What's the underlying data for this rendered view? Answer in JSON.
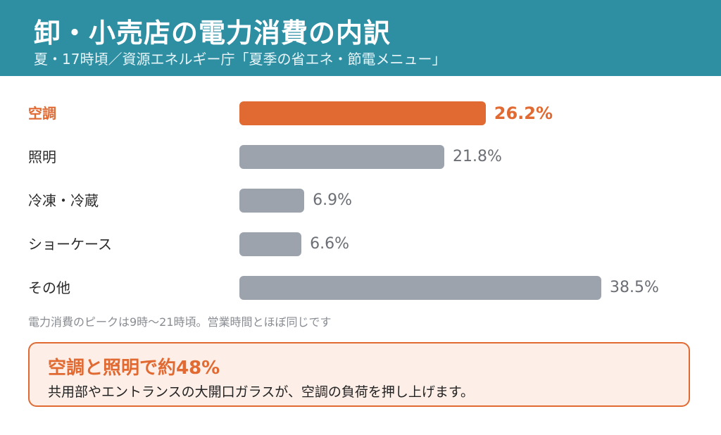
{
  "header": {
    "title": "卸・小売店の電力消費の内訳",
    "subtitle": "夏・17時頃／資源エネルギー庁「夏季の省エネ・節電メニュー」"
  },
  "chart_data": {
    "type": "bar",
    "orientation": "horizontal",
    "categories": [
      "空調",
      "照明",
      "冷凍・冷蔵",
      "ショーケース",
      "その他"
    ],
    "values": [
      26.2,
      21.8,
      6.9,
      6.6,
      38.5
    ],
    "value_labels": [
      "26.2%",
      "21.8%",
      "6.9%",
      "6.6%",
      "38.5%"
    ],
    "highlight_index": 0,
    "unit": "%",
    "xlim": [
      0,
      38.5
    ]
  },
  "note": "電力消費のピークは9時〜21時頃。営業時間とほぼ同じです",
  "callout": {
    "title": "空調と照明で約48%",
    "body": "共用部やエントランスの大開口ガラスが、空調の負荷を押し上げます。"
  },
  "colors": {
    "header_bg": "#2e8fa3",
    "highlight": "#e06a32",
    "bar_default": "#9ca3ad",
    "callout_bg": "#fdeee7"
  }
}
